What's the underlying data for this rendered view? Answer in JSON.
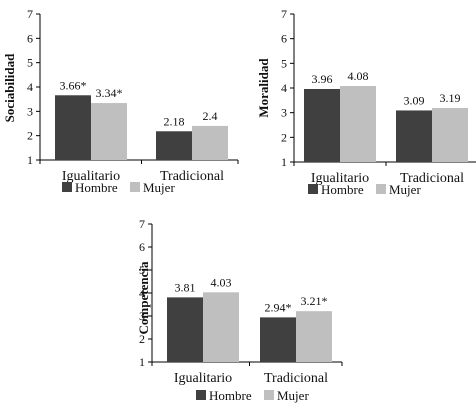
{
  "colors": {
    "hombre": "#404040",
    "mujer": "#bfbfbf",
    "axis": "#000000"
  },
  "chart_data": [
    {
      "type": "bar",
      "ylabel": "Sociabilidad",
      "ylim": [
        1,
        7
      ],
      "yticks": [
        "1",
        "2",
        "3",
        "4",
        "5",
        "6",
        "7"
      ],
      "categories": [
        "Igualitario",
        "Tradicional"
      ],
      "series": [
        {
          "name": "Hombre",
          "values": [
            3.66,
            2.18
          ],
          "labels": [
            "3.66*",
            "2.18"
          ]
        },
        {
          "name": "Mujer",
          "values": [
            3.34,
            2.4
          ],
          "labels": [
            "3.34*",
            "2.4"
          ]
        }
      ],
      "legend": "bottom"
    },
    {
      "type": "bar",
      "ylabel": "Moralidad",
      "ylim": [
        1,
        7
      ],
      "yticks": [
        "1",
        "2",
        "3",
        "4",
        "5",
        "6",
        "7"
      ],
      "categories": [
        "Igualitario",
        "Tradicional"
      ],
      "series": [
        {
          "name": "Hombre",
          "values": [
            3.96,
            3.09
          ],
          "labels": [
            "3.96",
            "3.09"
          ]
        },
        {
          "name": "Mujer",
          "values": [
            4.08,
            3.19
          ],
          "labels": [
            "4.08",
            "3.19"
          ]
        }
      ],
      "legend": "bottom"
    },
    {
      "type": "bar",
      "ylabel": "Competencia",
      "ylim": [
        1,
        7
      ],
      "yticks": [
        "1",
        "2",
        "3",
        "4",
        "5",
        "6",
        "7"
      ],
      "categories": [
        "Igualitario",
        "Tradicional"
      ],
      "series": [
        {
          "name": "Hombre",
          "values": [
            3.81,
            2.94
          ],
          "labels": [
            "3.81",
            "2.94*"
          ]
        },
        {
          "name": "Mujer",
          "values": [
            4.03,
            3.21
          ],
          "labels": [
            "4.03",
            "3.21*"
          ]
        }
      ],
      "legend": "bottom"
    }
  ]
}
